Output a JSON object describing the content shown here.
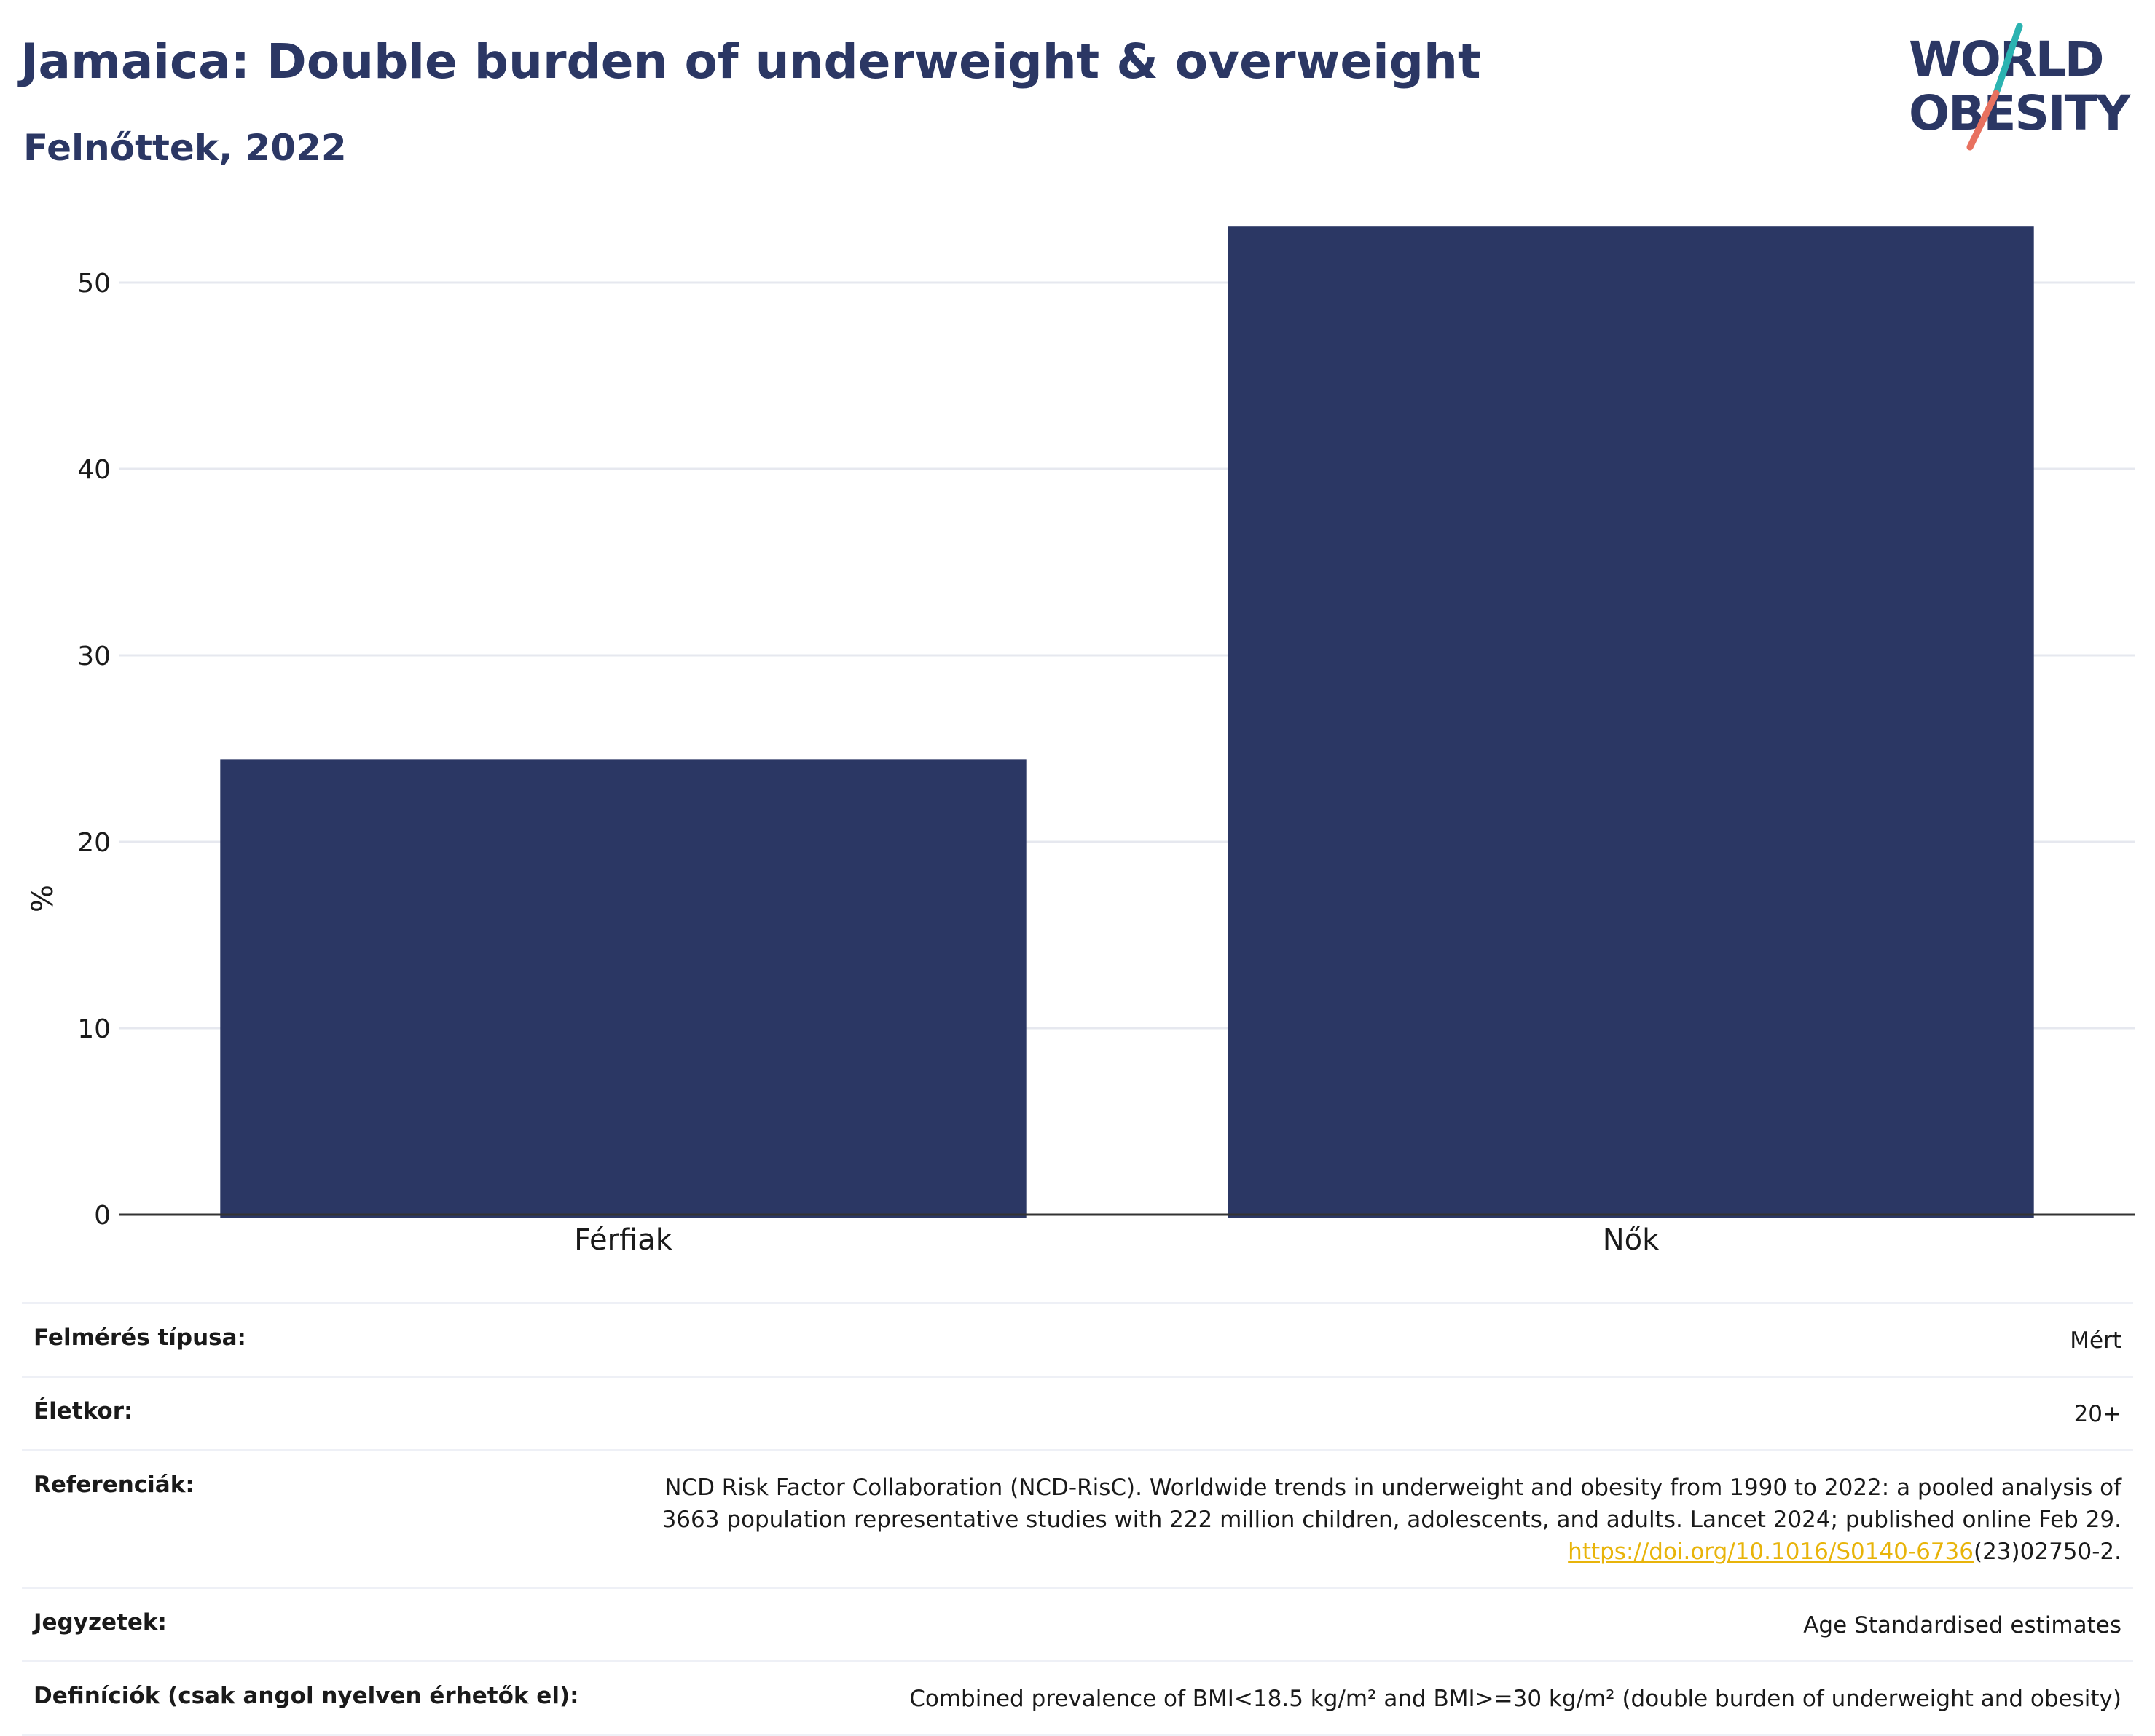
{
  "header": {
    "title": "Jamaica: Double burden of underweight & overweight",
    "subtitle": "Felnőttek, 2022"
  },
  "logo": {
    "line1": "WORLD",
    "line2": "OBESITY",
    "accent_teal": "#2bb3b1",
    "accent_red": "#e8715f",
    "text_color": "#2b3764"
  },
  "colors": {
    "bar": "#2b3764",
    "grid": "#e6e8ef",
    "axis": "#333333"
  },
  "chart_data": {
    "type": "bar",
    "categories": [
      "Férfiak",
      "Nők"
    ],
    "values": [
      24.4,
      53.0
    ],
    "ylabel": "%",
    "ylim": [
      0,
      55
    ],
    "yticks": [
      0,
      10,
      20,
      30,
      40,
      50
    ],
    "grid": true
  },
  "meta": {
    "survey_label": "Felmérés típusa:",
    "survey_value": "Mért",
    "age_label": "Életkor:",
    "age_value": "20+",
    "ref_label": "Referenciák:",
    "ref_line1": "NCD Risk Factor Collaboration (NCD-RisC). Worldwide trends in underweight and obesity from 1990 to 2022: a pooled analysis of",
    "ref_line2": "3663 population representative studies with 222 million children, adolescents, and adults. Lancet 2024; published online Feb 29.",
    "ref_link": "https://doi.org/10.1016/S0140-6736",
    "ref_tail": "(23)02750-2.",
    "notes_label": "Jegyzetek:",
    "notes_value": "Age Standardised estimates",
    "def_label": "Definíciók (csak angol nyelven érhetők el):",
    "def_value": "Combined prevalence of BMI<18.5 kg/m² and BMI>=30 kg/m² (double burden of underweight and obesity)"
  }
}
